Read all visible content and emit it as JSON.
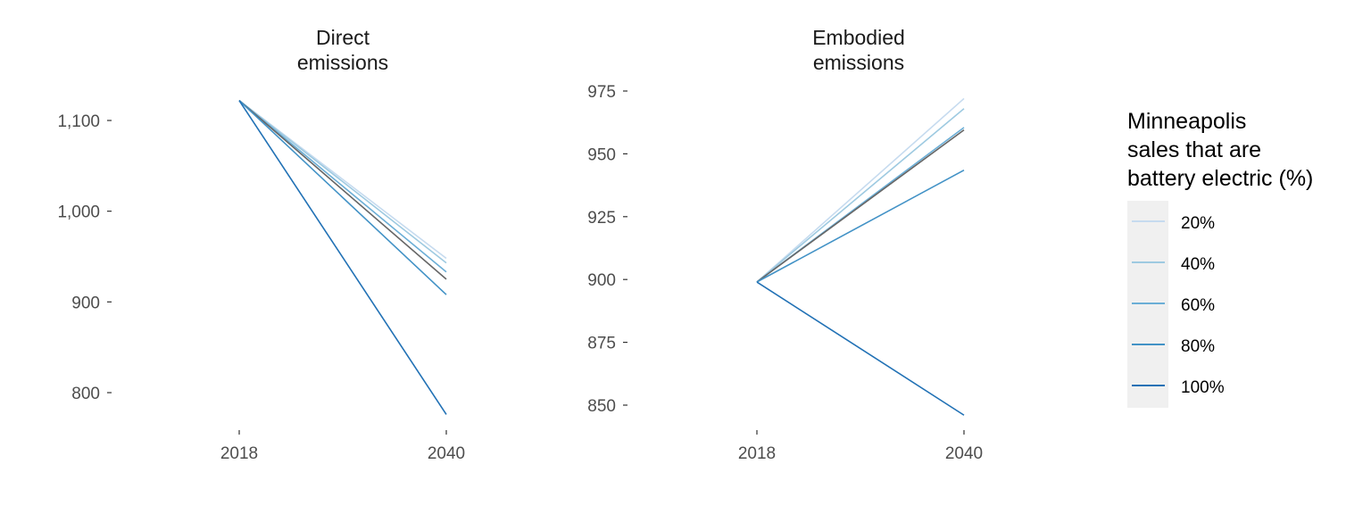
{
  "chart_data": [
    {
      "type": "line",
      "title": [
        "Direct",
        "emissions"
      ],
      "x": [
        "2018",
        "2040"
      ],
      "ylim": [
        760,
        1135
      ],
      "yticks": [
        800,
        900,
        1000,
        1100
      ],
      "ytick_labels": [
        "800",
        "900",
        "1,000",
        "1,100"
      ],
      "grid": false,
      "series": [
        {
          "name": "20%",
          "color": "#c6dbef",
          "values": [
            1122,
            948
          ]
        },
        {
          "name": "40%",
          "color": "#9ecae1",
          "values": [
            1122,
            943
          ]
        },
        {
          "name": "60%",
          "color": "#6baed6",
          "values": [
            1122,
            933
          ]
        },
        {
          "color": "#666666",
          "values": [
            1122,
            925
          ]
        },
        {
          "name": "80%",
          "color": "#4292c6",
          "values": [
            1122,
            908
          ]
        },
        {
          "name": "100%",
          "color": "#2171b5",
          "values": [
            1122,
            776
          ]
        }
      ]
    },
    {
      "type": "line",
      "title": [
        "Embodied",
        "emissions"
      ],
      "x": [
        "2018",
        "2040"
      ],
      "ylim": [
        843,
        978
      ],
      "yticks": [
        850,
        875,
        900,
        925,
        950,
        975
      ],
      "ytick_labels": [
        "850",
        "875",
        "900",
        "925",
        "950",
        "975"
      ],
      "grid": false,
      "series": [
        {
          "name": "20%",
          "color": "#c6dbef",
          "values": [
            899,
            972
          ]
        },
        {
          "name": "40%",
          "color": "#9ecae1",
          "values": [
            899,
            968
          ]
        },
        {
          "name": "60%",
          "color": "#6baed6",
          "values": [
            899,
            960.5
          ]
        },
        {
          "color": "#666666",
          "values": [
            899,
            959.5
          ]
        },
        {
          "name": "80%",
          "color": "#4292c6",
          "values": [
            899,
            943.5
          ]
        },
        {
          "name": "100%",
          "color": "#2171b5",
          "values": [
            899,
            846
          ]
        }
      ]
    }
  ],
  "legend": {
    "title": [
      "Minneapolis",
      "sales that are",
      "battery electric (%)"
    ],
    "placement": "right",
    "items": [
      {
        "label": "20%",
        "color": "#c6dbef"
      },
      {
        "label": "40%",
        "color": "#9ecae1"
      },
      {
        "label": "60%",
        "color": "#6baed6"
      },
      {
        "label": "80%",
        "color": "#4292c6"
      },
      {
        "label": "100%",
        "color": "#2171b5"
      }
    ]
  }
}
